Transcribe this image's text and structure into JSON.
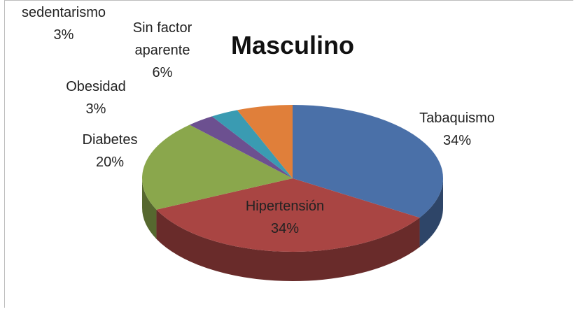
{
  "chart_data": {
    "type": "pie3d",
    "title": "Masculino",
    "categories": [
      "Tabaquismo",
      "Hipertensión",
      "Diabetes",
      "Obesidad",
      "sedentarismo",
      "Sin factor aparente"
    ],
    "values": [
      34,
      34,
      20,
      3,
      3,
      6
    ],
    "value_labels": [
      "34%",
      "34%",
      "20%",
      "3%",
      "3%",
      "6%"
    ],
    "colors": [
      "#4a70a8",
      "#a94543",
      "#8aa74c",
      "#6c5090",
      "#3a9bb2",
      "#e07f3a"
    ]
  }
}
